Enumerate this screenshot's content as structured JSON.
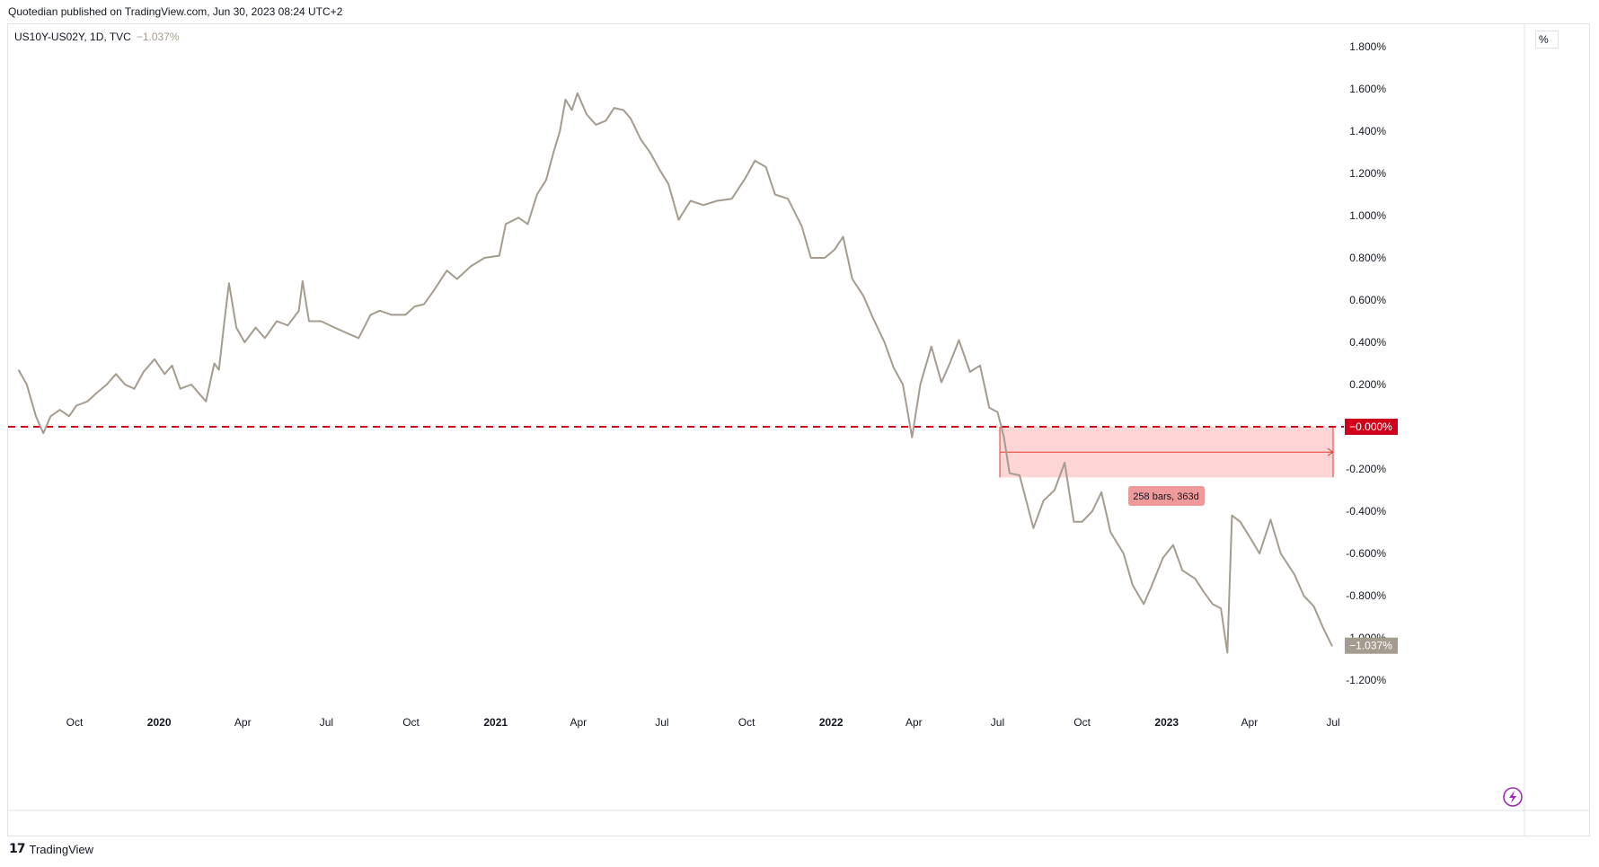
{
  "header": {
    "published": "Quotedian published on TradingView.com, Jun 30, 2023 08:24 UTC+2"
  },
  "legend": {
    "symbol": "US10Y-US02Y, 1D, TVC",
    "last_value": "−1.037%"
  },
  "price_scale": {
    "unit": "%"
  },
  "footer": {
    "brand": "TradingView"
  },
  "colors": {
    "series": "#a59c90",
    "zero_line": "#d0021b",
    "range_fill": "#f9b3b0",
    "range_line": "#e53935"
  },
  "labels": {
    "zero": "−0.000%",
    "last": "−1.037%",
    "range": "258 bars, 363d"
  },
  "chart_data": {
    "type": "line",
    "title": "",
    "xlabel": "",
    "ylabel": "%",
    "ylim": [
      -1.33,
      1.83
    ],
    "grid": false,
    "y_ticks": [
      "1.800%",
      "1.600%",
      "1.400%",
      "1.200%",
      "1.000%",
      "0.800%",
      "0.600%",
      "0.400%",
      "0.200%",
      "-0.200%",
      "-0.400%",
      "-0.600%",
      "-0.800%",
      "-1.000%",
      "-1.200%"
    ],
    "y_tick_values": [
      1.8,
      1.6,
      1.4,
      1.2,
      1.0,
      0.8,
      0.6,
      0.4,
      0.2,
      -0.2,
      -0.4,
      -0.6,
      -0.8,
      -1.0,
      -1.2
    ],
    "x_ticks": [
      {
        "label": "Oct",
        "date": "2019-10-01",
        "bold": false
      },
      {
        "label": "2020",
        "date": "2020-01-01",
        "bold": true
      },
      {
        "label": "Apr",
        "date": "2020-04-01",
        "bold": false
      },
      {
        "label": "Jul",
        "date": "2020-07-01",
        "bold": false
      },
      {
        "label": "Oct",
        "date": "2020-10-01",
        "bold": false
      },
      {
        "label": "2021",
        "date": "2021-01-01",
        "bold": true
      },
      {
        "label": "Apr",
        "date": "2021-04-01",
        "bold": false
      },
      {
        "label": "Jul",
        "date": "2021-07-01",
        "bold": false
      },
      {
        "label": "Oct",
        "date": "2021-10-01",
        "bold": false
      },
      {
        "label": "2022",
        "date": "2022-01-01",
        "bold": true
      },
      {
        "label": "Apr",
        "date": "2022-04-01",
        "bold": false
      },
      {
        "label": "Jul",
        "date": "2022-07-01",
        "bold": false
      },
      {
        "label": "Oct",
        "date": "2022-10-01",
        "bold": false
      },
      {
        "label": "2023",
        "date": "2023-01-01",
        "bold": true
      },
      {
        "label": "Apr",
        "date": "2023-04-01",
        "bold": false
      },
      {
        "label": "Jul",
        "date": "2023-07-01",
        "bold": false
      }
    ],
    "series": [
      {
        "values": [
          [
            "2019-08-01",
            0.27
          ],
          [
            "2019-08-10",
            0.2
          ],
          [
            "2019-08-20",
            0.05
          ],
          [
            "2019-08-28",
            -0.03
          ],
          [
            "2019-09-05",
            0.05
          ],
          [
            "2019-09-15",
            0.08
          ],
          [
            "2019-09-25",
            0.05
          ],
          [
            "2019-10-03",
            0.1
          ],
          [
            "2019-10-15",
            0.12
          ],
          [
            "2019-10-25",
            0.16
          ],
          [
            "2019-11-05",
            0.2
          ],
          [
            "2019-11-15",
            0.25
          ],
          [
            "2019-11-25",
            0.2
          ],
          [
            "2019-12-05",
            0.18
          ],
          [
            "2019-12-15",
            0.26
          ],
          [
            "2019-12-27",
            0.32
          ],
          [
            "2020-01-07",
            0.25
          ],
          [
            "2020-01-15",
            0.29
          ],
          [
            "2020-01-24",
            0.18
          ],
          [
            "2020-02-05",
            0.2
          ],
          [
            "2020-02-15",
            0.15
          ],
          [
            "2020-02-21",
            0.12
          ],
          [
            "2020-03-01",
            0.3
          ],
          [
            "2020-03-06",
            0.27
          ],
          [
            "2020-03-12",
            0.5
          ],
          [
            "2020-03-17",
            0.68
          ],
          [
            "2020-03-25",
            0.47
          ],
          [
            "2020-04-03",
            0.4
          ],
          [
            "2020-04-15",
            0.47
          ],
          [
            "2020-04-25",
            0.42
          ],
          [
            "2020-05-08",
            0.5
          ],
          [
            "2020-05-20",
            0.48
          ],
          [
            "2020-06-01",
            0.55
          ],
          [
            "2020-06-05",
            0.69
          ],
          [
            "2020-06-12",
            0.5
          ],
          [
            "2020-06-25",
            0.5
          ],
          [
            "2020-07-10",
            0.47
          ],
          [
            "2020-07-25",
            0.44
          ],
          [
            "2020-08-05",
            0.42
          ],
          [
            "2020-08-18",
            0.53
          ],
          [
            "2020-08-28",
            0.55
          ],
          [
            "2020-09-10",
            0.53
          ],
          [
            "2020-09-25",
            0.53
          ],
          [
            "2020-10-05",
            0.57
          ],
          [
            "2020-10-15",
            0.58
          ],
          [
            "2020-10-25",
            0.64
          ],
          [
            "2020-11-09",
            0.74
          ],
          [
            "2020-11-20",
            0.7
          ],
          [
            "2020-12-05",
            0.76
          ],
          [
            "2020-12-20",
            0.8
          ],
          [
            "2021-01-05",
            0.81
          ],
          [
            "2021-01-12",
            0.96
          ],
          [
            "2021-01-26",
            0.99
          ],
          [
            "2021-02-05",
            0.96
          ],
          [
            "2021-02-15",
            1.1
          ],
          [
            "2021-02-25",
            1.17
          ],
          [
            "2021-03-05",
            1.3
          ],
          [
            "2021-03-12",
            1.4
          ],
          [
            "2021-03-18",
            1.55
          ],
          [
            "2021-03-25",
            1.5
          ],
          [
            "2021-03-31",
            1.58
          ],
          [
            "2021-04-10",
            1.48
          ],
          [
            "2021-04-20",
            1.43
          ],
          [
            "2021-05-01",
            1.45
          ],
          [
            "2021-05-10",
            1.51
          ],
          [
            "2021-05-20",
            1.5
          ],
          [
            "2021-05-28",
            1.46
          ],
          [
            "2021-06-08",
            1.36
          ],
          [
            "2021-06-18",
            1.3
          ],
          [
            "2021-06-28",
            1.22
          ],
          [
            "2021-07-08",
            1.15
          ],
          [
            "2021-07-19",
            0.98
          ],
          [
            "2021-08-01",
            1.07
          ],
          [
            "2021-08-15",
            1.05
          ],
          [
            "2021-08-30",
            1.07
          ],
          [
            "2021-09-15",
            1.08
          ],
          [
            "2021-09-30",
            1.18
          ],
          [
            "2021-10-10",
            1.26
          ],
          [
            "2021-10-22",
            1.23
          ],
          [
            "2021-11-01",
            1.1
          ],
          [
            "2021-11-15",
            1.08
          ],
          [
            "2021-11-30",
            0.95
          ],
          [
            "2021-12-10",
            0.8
          ],
          [
            "2021-12-25",
            0.8
          ],
          [
            "2022-01-05",
            0.84
          ],
          [
            "2022-01-14",
            0.9
          ],
          [
            "2022-01-24",
            0.7
          ],
          [
            "2022-02-05",
            0.62
          ],
          [
            "2022-02-15",
            0.52
          ],
          [
            "2022-02-28",
            0.4
          ],
          [
            "2022-03-10",
            0.28
          ],
          [
            "2022-03-20",
            0.2
          ],
          [
            "2022-03-30",
            -0.05
          ],
          [
            "2022-04-08",
            0.2
          ],
          [
            "2022-04-20",
            0.38
          ],
          [
            "2022-05-01",
            0.21
          ],
          [
            "2022-05-10",
            0.3
          ],
          [
            "2022-05-20",
            0.41
          ],
          [
            "2022-06-01",
            0.26
          ],
          [
            "2022-06-12",
            0.29
          ],
          [
            "2022-06-22",
            0.09
          ],
          [
            "2022-07-01",
            0.07
          ],
          [
            "2022-07-08",
            -0.05
          ],
          [
            "2022-07-14",
            -0.22
          ],
          [
            "2022-07-25",
            -0.23
          ],
          [
            "2022-08-09",
            -0.48
          ],
          [
            "2022-08-20",
            -0.35
          ],
          [
            "2022-09-01",
            -0.3
          ],
          [
            "2022-09-12",
            -0.17
          ],
          [
            "2022-09-22",
            -0.45
          ],
          [
            "2022-10-01",
            -0.45
          ],
          [
            "2022-10-12",
            -0.4
          ],
          [
            "2022-10-22",
            -0.31
          ],
          [
            "2022-11-01",
            -0.5
          ],
          [
            "2022-11-15",
            -0.6
          ],
          [
            "2022-11-25",
            -0.75
          ],
          [
            "2022-12-07",
            -0.84
          ],
          [
            "2022-12-15",
            -0.76
          ],
          [
            "2022-12-28",
            -0.62
          ],
          [
            "2023-01-08",
            -0.56
          ],
          [
            "2023-01-18",
            -0.68
          ],
          [
            "2023-02-01",
            -0.72
          ],
          [
            "2023-02-10",
            -0.78
          ],
          [
            "2023-02-20",
            -0.84
          ],
          [
            "2023-03-01",
            -0.86
          ],
          [
            "2023-03-08",
            -1.07
          ],
          [
            "2023-03-13",
            -0.42
          ],
          [
            "2023-03-22",
            -0.45
          ],
          [
            "2023-04-01",
            -0.52
          ],
          [
            "2023-04-12",
            -0.6
          ],
          [
            "2023-04-24",
            -0.44
          ],
          [
            "2023-05-05",
            -0.6
          ],
          [
            "2023-05-20",
            -0.7
          ],
          [
            "2023-05-30",
            -0.8
          ],
          [
            "2023-06-10",
            -0.85
          ],
          [
            "2023-06-20",
            -0.95
          ],
          [
            "2023-06-30",
            -1.04
          ]
        ]
      }
    ]
  }
}
